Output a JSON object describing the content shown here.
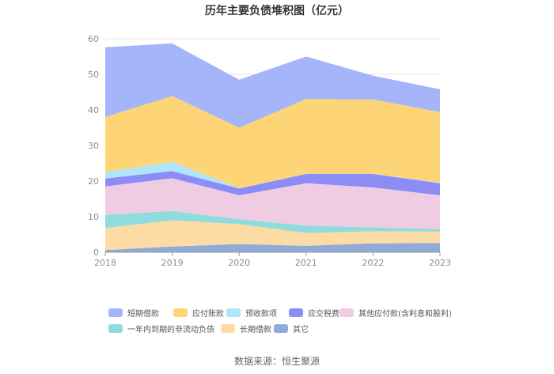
{
  "chart_data": {
    "type": "area",
    "stacked": true,
    "title": "历年主要负债堆积图（亿元）",
    "x": [
      "2018",
      "2019",
      "2020",
      "2021",
      "2022",
      "2023"
    ],
    "ylim": [
      0,
      60
    ],
    "yticks": [
      0,
      10,
      20,
      30,
      40,
      50,
      60
    ],
    "grid": true,
    "legend_position": "bottom",
    "series": [
      {
        "name": "其它",
        "color": "#8fabd8",
        "values": [
          0.6,
          1.6,
          2.3,
          1.8,
          2.5,
          2.6
        ]
      },
      {
        "name": "长期借款",
        "color": "#fddba4",
        "values": [
          6.2,
          7.4,
          5.6,
          3.6,
          3.4,
          3.2
        ]
      },
      {
        "name": "一年内到期的非流动负债",
        "color": "#8fdcdc",
        "values": [
          3.7,
          2.6,
          1.4,
          2.1,
          1.1,
          0.7
        ]
      },
      {
        "name": "其他应付款(含利息和股利)",
        "color": "#f0cce3",
        "values": [
          8.0,
          9.2,
          6.7,
          11.9,
          11.2,
          9.5
        ]
      },
      {
        "name": "应交税费",
        "color": "#8c8cf6",
        "values": [
          2.2,
          2.0,
          1.9,
          2.6,
          3.8,
          3.4
        ]
      },
      {
        "name": "预收款项",
        "color": "#aee5fb",
        "values": [
          1.8,
          2.6,
          0.1,
          0.1,
          0.1,
          0.1
        ]
      },
      {
        "name": "应付账款",
        "color": "#fdd476",
        "values": [
          15.5,
          18.5,
          17.0,
          21.0,
          20.8,
          19.9
        ]
      },
      {
        "name": "短期借款",
        "color": "#a4b5fa",
        "values": [
          19.6,
          14.8,
          13.5,
          11.9,
          6.7,
          6.4
        ]
      }
    ],
    "legend_order": [
      "短期借款",
      "应付账款",
      "预收款项",
      "应交税费",
      "其他应付款(含利息和股利)",
      "一年内到期的非流动负债",
      "长期借款",
      "其它"
    ]
  },
  "source_text": "数据来源：恒生聚源"
}
